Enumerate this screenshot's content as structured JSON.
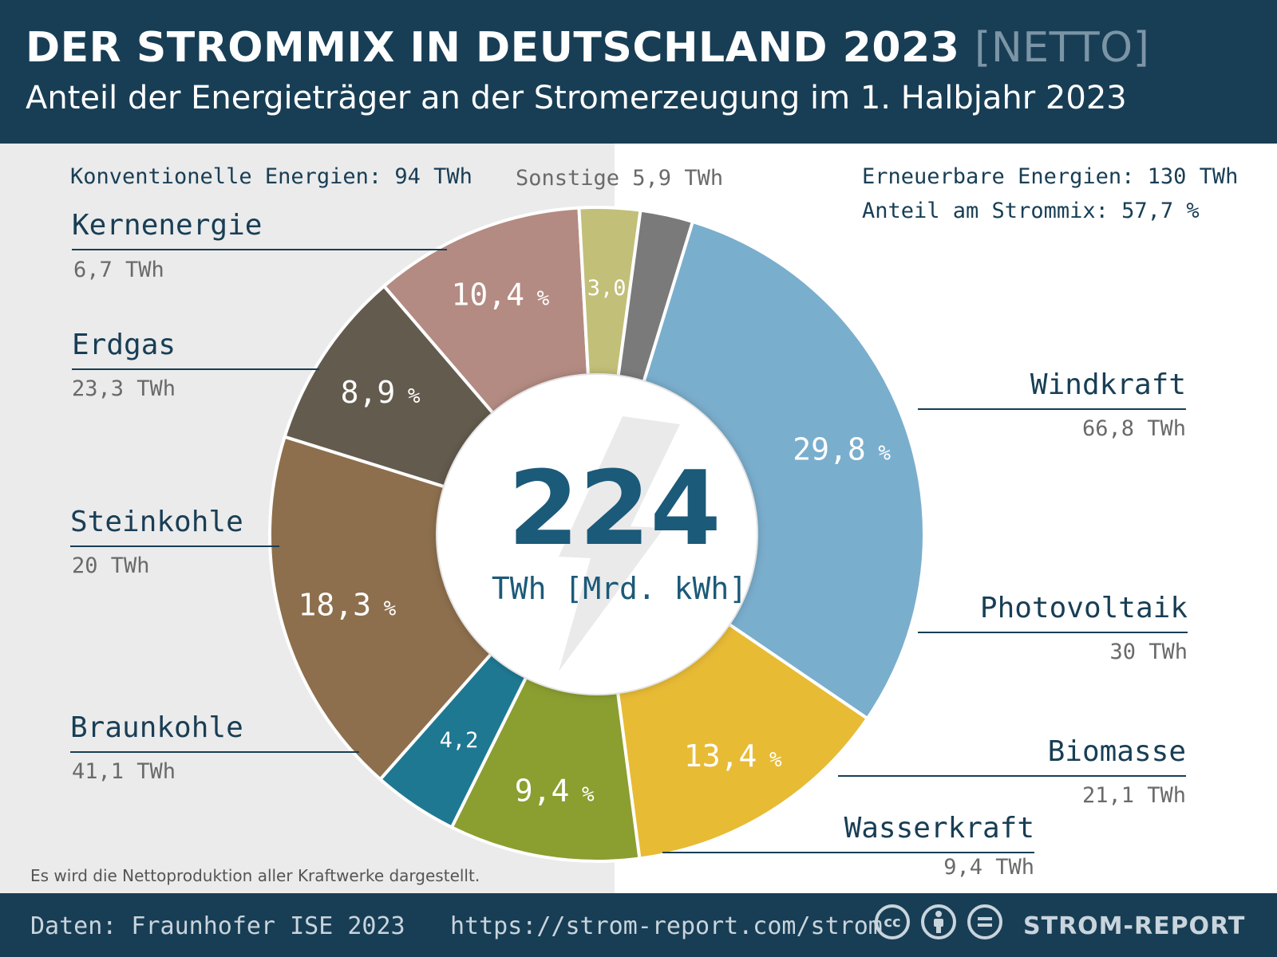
{
  "header": {
    "title": "DER STROMMIX IN DEUTSCHLAND 2023",
    "title_tag": "[NETTO]",
    "subtitle": "Anteil der Energieträger an der Stromerzeugung im 1. Halbjahr 2023"
  },
  "groups": {
    "conventional": "Konventionelle Energien: 94 TWh",
    "sonstige": "Sonstige 5,9 TWh",
    "renewable_line1": "Erneuerbare Energien: 130 TWh",
    "renewable_line2": "Anteil am Strommix: 57,7 %"
  },
  "center": {
    "total": "224",
    "unit": "TWh [Mrd. kWh]"
  },
  "labels": {
    "kernenergie": {
      "name": "Kernenergie",
      "value": "6,7 TWh"
    },
    "erdgas": {
      "name": "Erdgas",
      "value": "23,3 TWh"
    },
    "steinkohle": {
      "name": "Steinkohle",
      "value": "20 TWh"
    },
    "braunkohle": {
      "name": "Braunkohle",
      "value": "41,1 TWh"
    },
    "windkraft": {
      "name": "Windkraft",
      "value": "66,8 TWh"
    },
    "photovoltaik": {
      "name": "Photovoltaik",
      "value": "30 TWh"
    },
    "biomasse": {
      "name": "Biomasse",
      "value": "21,1 TWh"
    },
    "wasserkraft": {
      "name": "Wasserkraft",
      "value": "9,4 TWh"
    }
  },
  "note": "Es wird die Nettoproduktion aller Kraftwerke dargestellt.",
  "footer": {
    "source": "Daten: Fraunhofer ISE 2023",
    "url": "https://strom-report.com/strom",
    "brand": "STROM-REPORT",
    "license_icons": [
      "cc-icon",
      "by-icon",
      "nd-icon"
    ]
  },
  "chart_data": {
    "type": "pie",
    "variant": "donut",
    "total_twh": 224,
    "slices": [
      {
        "name": "Windkraft",
        "twh": 66.8,
        "percent": 29.8,
        "label": "29,8",
        "color": "#7aaecd"
      },
      {
        "name": "Photovoltaik",
        "twh": 30,
        "percent": 13.4,
        "label": "13,4",
        "color": "#e8bb35"
      },
      {
        "name": "Biomasse",
        "twh": 21.1,
        "percent": 9.4,
        "label": "9,4",
        "color": "#8b9e30"
      },
      {
        "name": "Wasserkraft",
        "twh": 9.4,
        "percent": 4.2,
        "label": "4,2",
        "color": "#1f7892"
      },
      {
        "name": "Braunkohle",
        "twh": 41.1,
        "percent": 18.3,
        "label": "18,3",
        "color": "#8d6f4d"
      },
      {
        "name": "Steinkohle",
        "twh": 20,
        "percent": 8.9,
        "label": "8,9",
        "color": "#635b4d"
      },
      {
        "name": "Erdgas",
        "twh": 23.3,
        "percent": 10.4,
        "label": "10,4",
        "color": "#b38b82"
      },
      {
        "name": "Kernenergie",
        "twh": 6.7,
        "percent": 3.0,
        "label": "3,0",
        "color": "#c2bf79"
      },
      {
        "name": "Sonstige",
        "twh": 5.9,
        "percent": 2.6,
        "label": "",
        "color": "#7a7a7a"
      }
    ],
    "percent_sign": "%",
    "start_angle_deg": 17
  }
}
